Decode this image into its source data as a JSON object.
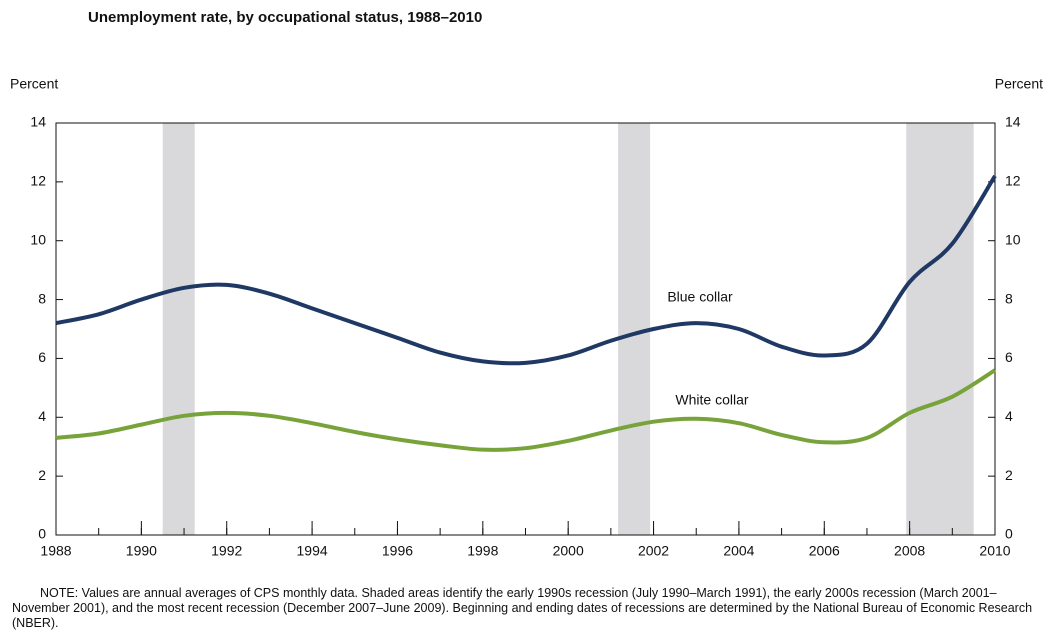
{
  "chart_data": {
    "type": "line",
    "title": "Unemployment rate, by occupational status, 1988–2010",
    "ylabel": "Percent",
    "y2label": "Percent",
    "x": [
      1988,
      1989,
      1990,
      1991,
      1992,
      1993,
      1994,
      1995,
      1996,
      1997,
      1998,
      1999,
      2000,
      2001,
      2002,
      2003,
      2004,
      2005,
      2006,
      2007,
      2008,
      2009,
      2010
    ],
    "series": [
      {
        "name": "Blue collar",
        "color": "#1f3864",
        "values": [
          7.2,
          7.5,
          8.0,
          8.4,
          8.5,
          8.2,
          7.7,
          7.2,
          6.7,
          6.2,
          5.9,
          5.85,
          6.1,
          6.6,
          7.0,
          7.2,
          7.0,
          6.4,
          6.1,
          6.5,
          8.6,
          9.9,
          12.2
        ]
      },
      {
        "name": "White collar",
        "color": "#77a33a",
        "values": [
          3.3,
          3.45,
          3.75,
          4.05,
          4.15,
          4.05,
          3.8,
          3.5,
          3.25,
          3.05,
          2.9,
          2.95,
          3.2,
          3.55,
          3.85,
          3.95,
          3.8,
          3.4,
          3.15,
          3.3,
          4.15,
          4.7,
          5.6
        ]
      }
    ],
    "recessions": [
      {
        "start": 1990.5,
        "end": 1991.25
      },
      {
        "start": 2001.17,
        "end": 2001.92
      },
      {
        "start": 2007.92,
        "end": 2009.5
      }
    ],
    "recession_color": "#d9d9dc",
    "xlim": [
      1988,
      2010
    ],
    "xticks": [
      1988,
      1990,
      1992,
      1994,
      1996,
      1998,
      2000,
      2002,
      2004,
      2006,
      2008,
      2010
    ],
    "ylim": [
      0,
      14
    ],
    "yticks": [
      0,
      2,
      4,
      6,
      8,
      10,
      12,
      14
    ],
    "y2lim": [
      0,
      14
    ],
    "y2ticks": [
      0,
      2,
      4,
      6,
      8,
      10,
      12,
      14
    ],
    "note": "NOTE:    Values are annual averages of CPS monthly data. Shaded areas identify the early 1990s recession (July 1990–March 1991), the early 2000s recession (March 2001–November 2001), and the most recent recession (December 2007–June 2009). Beginning and ending dates of recessions are determined by the National Bureau of Economic Research (NBER)."
  }
}
